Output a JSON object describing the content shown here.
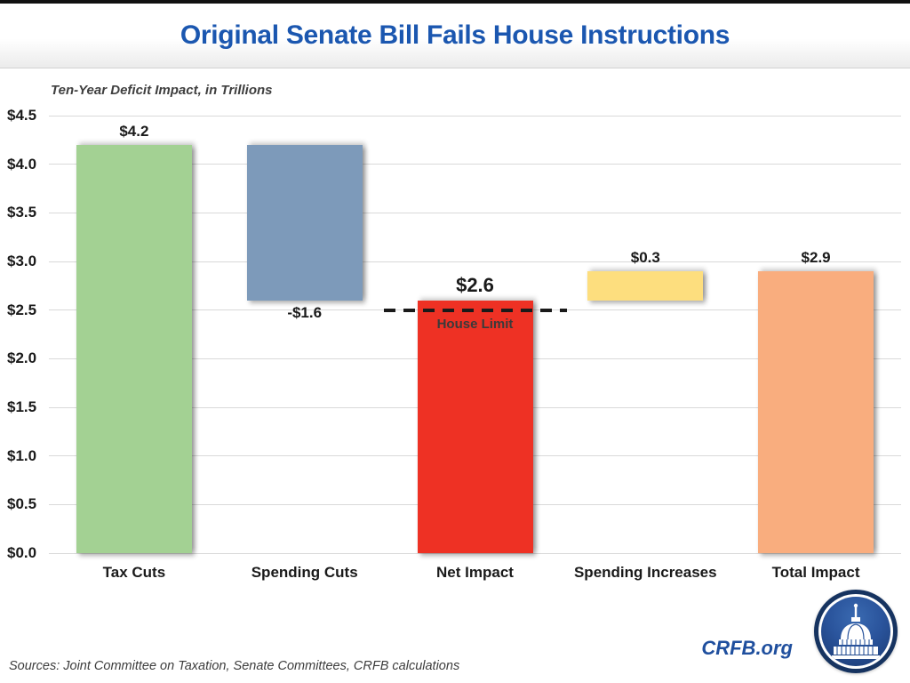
{
  "header": {
    "title": "Original Senate Bill Fails House Instructions"
  },
  "chart_data": {
    "type": "bar",
    "subtype": "waterfall",
    "title": "Original Senate Bill Fails House Instructions",
    "subtitle": "Ten-Year Deficit Impact, in Trillions",
    "categories": [
      "Tax Cuts",
      "Spending Cuts",
      "Net Impact",
      "Spending Increases",
      "Total Impact"
    ],
    "y_axis": {
      "min": 0,
      "max": 4.5,
      "step": 0.5,
      "tick_labels": [
        "$4.5",
        "$4.0",
        "$3.5",
        "$3.0",
        "$2.5",
        "$2.0",
        "$1.5",
        "$1.0",
        "$0.5",
        "$0.0"
      ],
      "grid": true
    },
    "bars": [
      {
        "category": "Tax Cuts",
        "from": 0,
        "to": 4.2,
        "value": 4.2,
        "label": "$4.2",
        "label_position": "above",
        "color": "#a3d193"
      },
      {
        "category": "Spending Cuts",
        "from": 2.6,
        "to": 4.2,
        "value": -1.6,
        "label": "-$1.6",
        "label_position": "below",
        "color": "#7d9aba"
      },
      {
        "category": "Net Impact",
        "from": 0,
        "to": 2.6,
        "value": 2.6,
        "label": "$2.6",
        "label_position": "above-large",
        "color": "#ee3124"
      },
      {
        "category": "Spending Increases",
        "from": 2.6,
        "to": 2.9,
        "value": 0.3,
        "label": "$0.3",
        "label_position": "above",
        "color": "#fdde7e"
      },
      {
        "category": "Total Impact",
        "from": 0,
        "to": 2.9,
        "value": 2.9,
        "label": "$2.9",
        "label_position": "above",
        "color": "#f9ad7e"
      }
    ],
    "reference_line": {
      "value": 2.5,
      "label": "House Limit",
      "style": "dashed",
      "color": "#1a1a1a",
      "anchor_category": "Net Impact"
    },
    "legend": null
  },
  "footer": {
    "sources": "Sources: Joint Committee on Taxation, Senate Committees, CRFB calculations",
    "brand": "CRFB.org"
  },
  "colors": {
    "title_blue": "#1b57b0",
    "brand_blue": "#1f4f9e",
    "gridline": "#d9d9d9"
  }
}
